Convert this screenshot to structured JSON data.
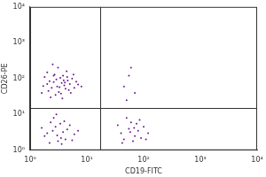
{
  "chart_data": {
    "type": "scatter",
    "x_label": "CD19-FITC",
    "y_label": "CD26-PE",
    "x": [
      2.1,
      3.0,
      4.2,
      2.6,
      3.5,
      5.0,
      1.8,
      2.9,
      3.8,
      4.6,
      6.0,
      2.3,
      3.2,
      4.0,
      5.5,
      2.0,
      2.7,
      3.6,
      4.8,
      6.5,
      1.7,
      2.4,
      3.1,
      4.4,
      5.2,
      7.0,
      2.2,
      3.4,
      2.8,
      3.9,
      1.6,
      2.5,
      3.3,
      4.5,
      5.8,
      8.0,
      2.0,
      3.7,
      4.1,
      2.6,
      2.0,
      2.8,
      3.5,
      4.5,
      2.3,
      3.1,
      5.0,
      1.8,
      2.6,
      3.8,
      6.0,
      2.2,
      4.0,
      3.0,
      5.5,
      1.6,
      2.9,
      4.2,
      3.4,
      7.0,
      2.5,
      3.6,
      40,
      55,
      70,
      60,
      45,
      80,
      100,
      35,
      65,
      90,
      50,
      75,
      120,
      58,
      42,
      85,
      68,
      110,
      55,
      60,
      45,
      70,
      50
    ],
    "values": [
      45,
      60,
      52,
      80,
      38,
      70,
      110,
      95,
      120,
      88,
      55,
      30,
      42,
      65,
      100,
      150,
      130,
      75,
      48,
      82,
      62,
      55,
      200,
      160,
      40,
      68,
      85,
      105,
      35,
      90,
      40,
      250,
      58,
      110,
      130,
      60,
      70,
      28,
      78,
      120,
      3.0,
      4.5,
      2.2,
      3.8,
      6.0,
      1.8,
      5.0,
      2.5,
      8.0,
      3.2,
      2.8,
      1.6,
      6.5,
      2.6,
      1.9,
      4.2,
      10,
      2.0,
      5.5,
      3.5,
      3.5,
      1.5,
      3.0,
      4.0,
      2.5,
      6.0,
      2.0,
      3.5,
      4.5,
      5.0,
      1.8,
      2.2,
      8.0,
      5.5,
      3.0,
      3.2,
      1.6,
      7.0,
      4.2,
      2.0,
      120,
      200,
      60,
      40,
      25
    ],
    "color": "#6a1b8a",
    "marker": "circle",
    "xlim": [
      1,
      10000
    ],
    "ylim": [
      1,
      10000
    ],
    "xticks": [
      {
        "value": 1,
        "label": "10⁰"
      },
      {
        "value": 10,
        "label": "10¹"
      },
      {
        "value": 100,
        "label": "10²"
      },
      {
        "value": 1000,
        "label": "10³"
      },
      {
        "value": 10000,
        "label": "10⁴"
      }
    ],
    "yticks": [
      {
        "value": 1,
        "label": "10⁰"
      },
      {
        "value": 10,
        "label": "10¹"
      },
      {
        "value": 100,
        "label": "10²"
      },
      {
        "value": 1000,
        "label": "10³"
      },
      {
        "value": 10000,
        "label": "10⁴"
      }
    ],
    "log": true,
    "grid": false,
    "quadrant": {
      "x": 17,
      "y": 15
    }
  }
}
